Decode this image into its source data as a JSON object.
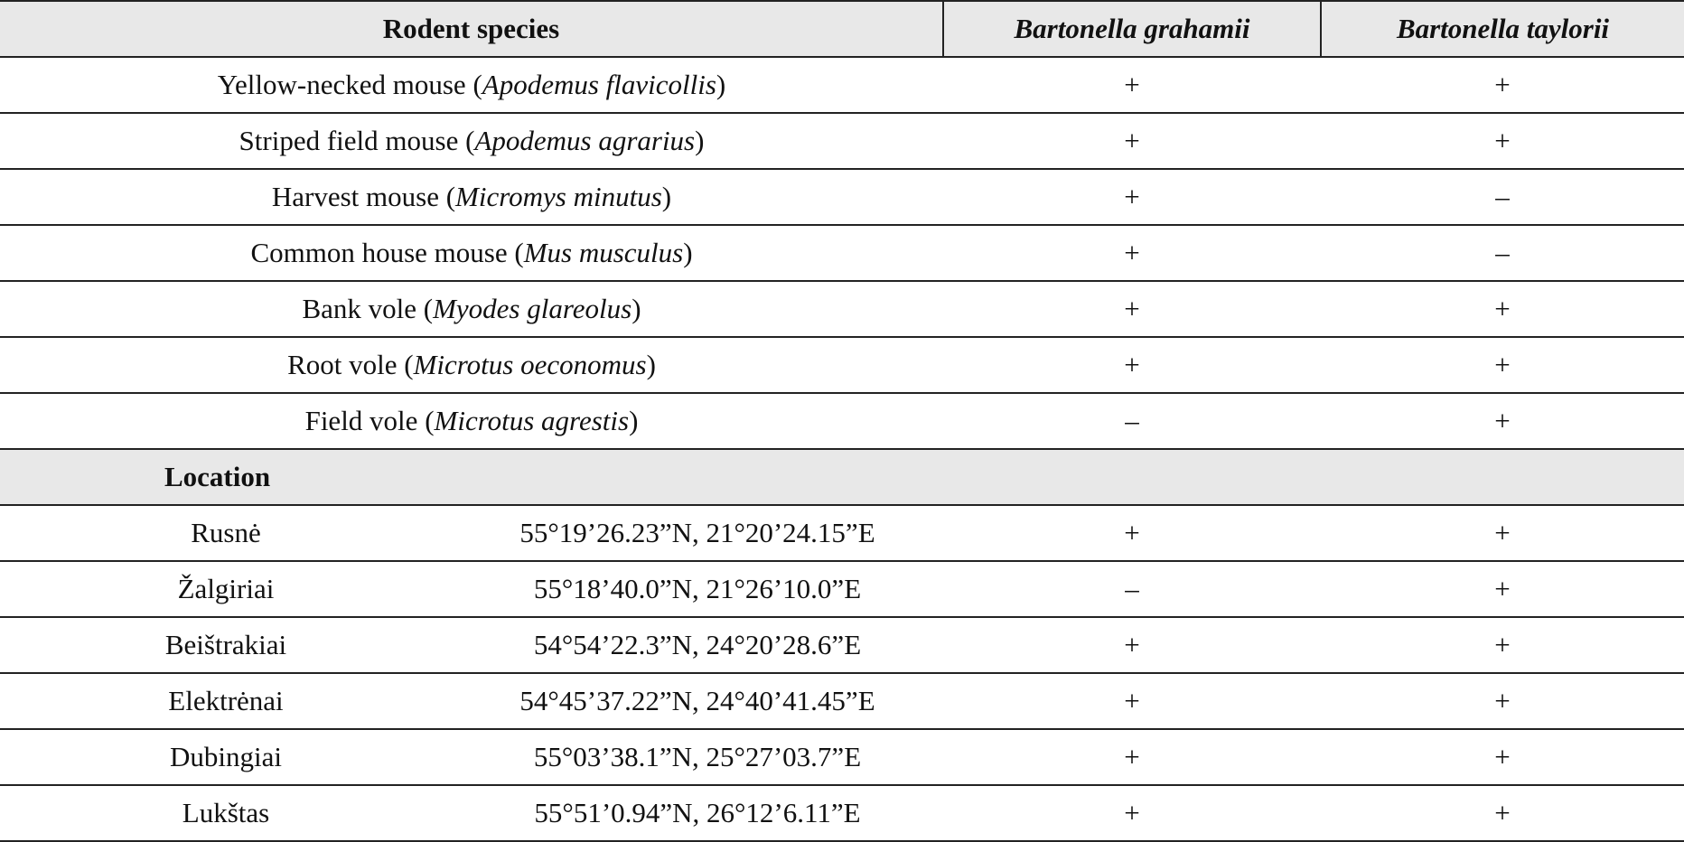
{
  "header": {
    "species_label": "Rodent species",
    "col_grahamii": "Bartonella grahamii",
    "col_taylorii": "Bartonella taylorii"
  },
  "species_rows": [
    {
      "common": "Yellow-necked mouse",
      "latin": "Apodemus flavicollis",
      "grahamii": "+",
      "taylorii": "+"
    },
    {
      "common": "Striped field mouse",
      "latin": "Apodemus agrarius",
      "grahamii": "+",
      "taylorii": "+"
    },
    {
      "common": "Harvest mouse",
      "latin": "Micromys minutus",
      "grahamii": "+",
      "taylorii": "–"
    },
    {
      "common": "Common house mouse",
      "latin": "Mus musculus",
      "grahamii": "+",
      "taylorii": "–"
    },
    {
      "common": "Bank vole",
      "latin": "Myodes glareolus",
      "grahamii": "+",
      "taylorii": "+"
    },
    {
      "common": "Root vole",
      "latin": "Microtus oeconomus",
      "grahamii": "+",
      "taylorii": "+"
    },
    {
      "common": "Field vole",
      "latin": "Microtus agrestis",
      "grahamii": "–",
      "taylorii": "+"
    }
  ],
  "location_label": "Location",
  "location_rows": [
    {
      "name": "Rusnė",
      "coords": "55°19’26.23”N, 21°20’24.15”E",
      "grahamii": "+",
      "taylorii": "+"
    },
    {
      "name": "Žalgiriai",
      "coords": "55°18’40.0”N, 21°26’10.0”E",
      "grahamii": "–",
      "taylorii": "+"
    },
    {
      "name": "Beištrakiai",
      "coords": "54°54’22.3”N, 24°20’28.6”E",
      "grahamii": "+",
      "taylorii": "+"
    },
    {
      "name": "Elektrėnai",
      "coords": "54°45’37.22”N, 24°40’41.45”E",
      "grahamii": "+",
      "taylorii": "+"
    },
    {
      "name": "Dubingiai",
      "coords": "55°03’38.1”N, 25°27’03.7”E",
      "grahamii": "+",
      "taylorii": "+"
    },
    {
      "name": "Lukštas",
      "coords": "55°51’0.94”N, 26°12’6.11”E",
      "grahamii": "+",
      "taylorii": "+"
    }
  ]
}
